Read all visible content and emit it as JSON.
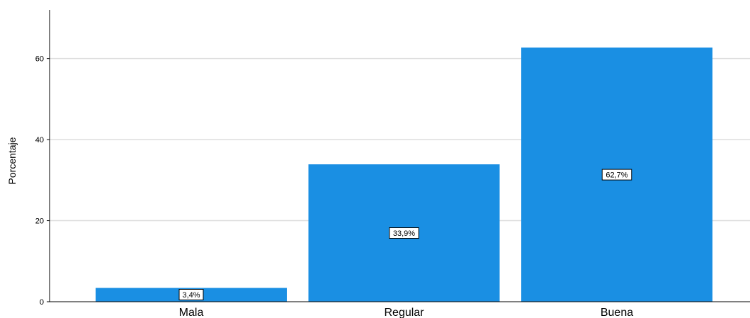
{
  "chart_data": {
    "type": "bar",
    "categories": [
      "Mala",
      "Regular",
      "Buena"
    ],
    "values": [
      3.4,
      33.9,
      62.7
    ],
    "data_labels": [
      "3,4%",
      "33,9%",
      "62,7%"
    ],
    "title": "",
    "xlabel": "",
    "ylabel": "Porcentaje",
    "ylim": [
      0,
      72
    ],
    "yticks": [
      0,
      20,
      40,
      60
    ],
    "grid": true,
    "colors": {
      "bar": "#1A8FE3",
      "grid": "#DDDDDD",
      "axis": "#000000",
      "label_bg": "#FFFFFF"
    }
  }
}
